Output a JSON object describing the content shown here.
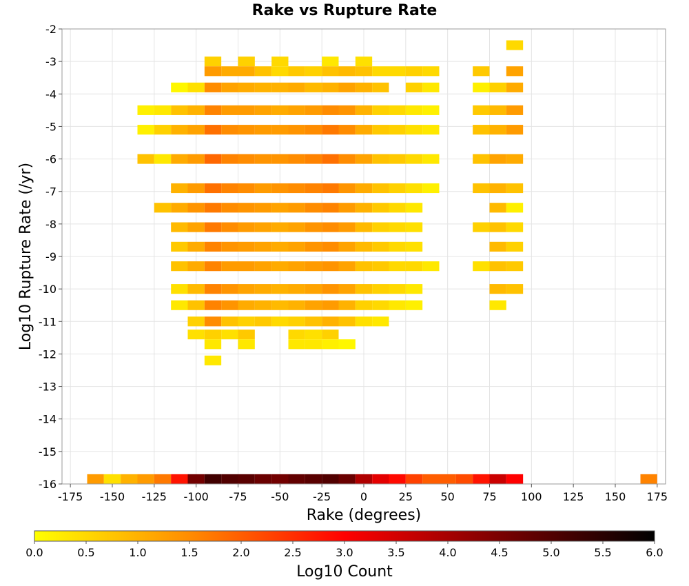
{
  "chart_data": {
    "type": "heatmap",
    "title": "Rake vs Rupture Rate",
    "xlabel": "Rake (degrees)",
    "ylabel": "Log10 Rupture Rate (/yr)",
    "colorbar_label": "Log10 Count",
    "xlim": [
      -180,
      180
    ],
    "ylim": [
      -16,
      -2
    ],
    "x_ticks": [
      "-175",
      "-150",
      "-125",
      "-100",
      "-75",
      "-50",
      "-25",
      "0",
      "25",
      "50",
      "75",
      "100",
      "125",
      "150",
      "175"
    ],
    "y_ticks": [
      "-2",
      "-3",
      "-4",
      "-5",
      "-6",
      "-7",
      "-8",
      "-9",
      "-10",
      "-11",
      "-12",
      "-13",
      "-14",
      "-15",
      "-16"
    ],
    "colorbar_ticks": [
      "0.0",
      "0.5",
      "1.0",
      "1.5",
      "2.0",
      "2.5",
      "3.0",
      "3.5",
      "4.0",
      "4.5",
      "5.0",
      "5.5",
      "6.0"
    ],
    "z_range": [
      0,
      6
    ],
    "colormap": [
      "#ffff00",
      "#ff8c00",
      "#ff0000",
      "#7a0000",
      "#000000"
    ],
    "grid": true,
    "bin_width": 10,
    "bin_height": 0.3,
    "cells": [
      [
        "-160",
        -16,
        1.3
      ],
      [
        "-150",
        -16,
        0.4
      ],
      [
        "-140",
        -16,
        1.0
      ],
      [
        "-130",
        -16,
        1.3
      ],
      [
        "-120",
        -16,
        1.7
      ],
      [
        "-110",
        -16,
        2.8
      ],
      [
        "-100",
        -16,
        4.6
      ],
      [
        "-90",
        -16,
        5.2
      ],
      [
        "-80",
        -16,
        5.0
      ],
      [
        "-70",
        -16,
        4.9
      ],
      [
        "-60",
        -16,
        4.7
      ],
      [
        "-50",
        -16,
        4.6
      ],
      [
        "-40",
        -16,
        4.8
      ],
      [
        "-30",
        -16,
        4.9
      ],
      [
        "-20",
        -16,
        5.0
      ],
      [
        "-10",
        -16,
        4.7
      ],
      [
        "0",
        -16,
        3.9
      ],
      [
        "10",
        -16,
        3.3
      ],
      [
        "20",
        -16,
        2.9
      ],
      [
        "30",
        -16,
        2.3
      ],
      [
        "40",
        -16,
        2.0
      ],
      [
        "50",
        -16,
        2.0
      ],
      [
        "60",
        -16,
        2.2
      ],
      [
        "70",
        -16,
        2.8
      ],
      [
        "80",
        -16,
        3.6
      ],
      [
        "90",
        -16,
        3.0
      ],
      [
        "170",
        -16,
        1.6
      ],
      [
        "-90",
        -3,
        0.6
      ],
      [
        "-70",
        -3,
        0.6
      ],
      [
        "-50",
        -3,
        0.5
      ],
      [
        "-20",
        -3,
        0.3
      ],
      [
        "0",
        -3,
        0.4
      ],
      [
        "90",
        -2.5,
        0.5
      ],
      [
        "-90",
        -3.3,
        1.3
      ],
      [
        "-80",
        -3.3,
        1.1
      ],
      [
        "-70",
        -3.3,
        1.1
      ],
      [
        "-60",
        -3.3,
        0.8
      ],
      [
        "-50",
        -3.3,
        0.5
      ],
      [
        "-40",
        -3.3,
        0.7
      ],
      [
        "-30",
        -3.3,
        0.6
      ],
      [
        "-20",
        -3.3,
        0.8
      ],
      [
        "-10",
        -3.3,
        0.9
      ],
      [
        "0",
        -3.3,
        0.8
      ],
      [
        "10",
        -3.3,
        0.5
      ],
      [
        "20",
        -3.3,
        0.5
      ],
      [
        "30",
        -3.3,
        0.6
      ],
      [
        "40",
        -3.3,
        0.5
      ],
      [
        "70",
        -3.3,
        0.7
      ],
      [
        "90",
        -3.3,
        1.2
      ],
      [
        "-110",
        -3.8,
        0.1
      ],
      [
        "-100",
        -3.8,
        0.4
      ],
      [
        "-90",
        -3.8,
        1.5
      ],
      [
        "-80",
        -3.8,
        1.2
      ],
      [
        "-70",
        -3.8,
        1.1
      ],
      [
        "-60",
        -3.8,
        1.0
      ],
      [
        "-50",
        -3.8,
        1.0
      ],
      [
        "-40",
        -3.8,
        1.1
      ],
      [
        "-30",
        -3.8,
        0.9
      ],
      [
        "-20",
        -3.8,
        1.0
      ],
      [
        "-10",
        -3.8,
        1.2
      ],
      [
        "0",
        -3.8,
        1.0
      ],
      [
        "10",
        -3.8,
        0.8
      ],
      [
        "30",
        -3.8,
        0.6
      ],
      [
        "40",
        -3.8,
        0.3
      ],
      [
        "70",
        -3.8,
        0.2
      ],
      [
        "80",
        -3.8,
        0.6
      ],
      [
        "90",
        -3.8,
        1.1
      ],
      [
        "-130",
        -4.5,
        0.2
      ],
      [
        "-120",
        -4.5,
        0.3
      ],
      [
        "-110",
        -4.5,
        0.8
      ],
      [
        "-100",
        -4.5,
        1.0
      ],
      [
        "-90",
        -4.5,
        1.6
      ],
      [
        "-80",
        -4.5,
        1.3
      ],
      [
        "-70",
        -4.5,
        1.3
      ],
      [
        "-60",
        -4.5,
        1.2
      ],
      [
        "-50",
        -4.5,
        1.1
      ],
      [
        "-40",
        -4.5,
        1.2
      ],
      [
        "-30",
        -4.5,
        1.3
      ],
      [
        "-20",
        -4.5,
        1.5
      ],
      [
        "-10",
        -4.5,
        1.4
      ],
      [
        "0",
        -4.5,
        1.0
      ],
      [
        "10",
        -4.5,
        0.6
      ],
      [
        "20",
        -4.5,
        0.5
      ],
      [
        "30",
        -4.5,
        0.3
      ],
      [
        "40",
        -4.5,
        0.2
      ],
      [
        "70",
        -4.5,
        0.7
      ],
      [
        "80",
        -4.5,
        0.9
      ],
      [
        "90",
        -4.5,
        1.3
      ],
      [
        "-130",
        -5.1,
        0.2
      ],
      [
        "-120",
        -5.1,
        0.6
      ],
      [
        "-110",
        -5.1,
        1.0
      ],
      [
        "-100",
        -5.1,
        1.2
      ],
      [
        "-90",
        -5.1,
        1.8
      ],
      [
        "-80",
        -5.1,
        1.5
      ],
      [
        "-70",
        -5.1,
        1.4
      ],
      [
        "-60",
        -5.1,
        1.3
      ],
      [
        "-50",
        -5.1,
        1.3
      ],
      [
        "-40",
        -5.1,
        1.4
      ],
      [
        "-30",
        -5.1,
        1.5
      ],
      [
        "-20",
        -5.1,
        1.7
      ],
      [
        "-10",
        -5.1,
        1.5
      ],
      [
        "0",
        -5.1,
        1.1
      ],
      [
        "10",
        -5.1,
        0.7
      ],
      [
        "20",
        -5.1,
        0.6
      ],
      [
        "30",
        -5.1,
        0.4
      ],
      [
        "40",
        -5.1,
        0.3
      ],
      [
        "70",
        -5.1,
        0.8
      ],
      [
        "80",
        -5.1,
        1.0
      ],
      [
        "90",
        -5.1,
        1.3
      ],
      [
        "-130",
        -6,
        0.8
      ],
      [
        "-120",
        -6,
        0.3
      ],
      [
        "-110",
        -6,
        1.1
      ],
      [
        "-100",
        -6,
        1.3
      ],
      [
        "-90",
        -6,
        1.9
      ],
      [
        "-80",
        -6,
        1.6
      ],
      [
        "-70",
        -6,
        1.5
      ],
      [
        "-60",
        -6,
        1.4
      ],
      [
        "-50",
        -6,
        1.4
      ],
      [
        "-40",
        -6,
        1.5
      ],
      [
        "-30",
        -6,
        1.6
      ],
      [
        "-20",
        -6,
        1.8
      ],
      [
        "-10",
        -6,
        1.5
      ],
      [
        "0",
        -6,
        1.2
      ],
      [
        "10",
        -6,
        0.8
      ],
      [
        "20",
        -6,
        0.7
      ],
      [
        "30",
        -6,
        0.5
      ],
      [
        "40",
        -6,
        0.3
      ],
      [
        "70",
        -6,
        0.8
      ],
      [
        "80",
        -6,
        1.2
      ],
      [
        "90",
        -6,
        1.1
      ],
      [
        "-110",
        -6.9,
        1.0
      ],
      [
        "-100",
        -6.9,
        1.3
      ],
      [
        "-90",
        -6.9,
        1.8
      ],
      [
        "-80",
        -6.9,
        1.6
      ],
      [
        "-70",
        -6.9,
        1.5
      ],
      [
        "-60",
        -6.9,
        1.3
      ],
      [
        "-50",
        -6.9,
        1.4
      ],
      [
        "-40",
        -6.9,
        1.5
      ],
      [
        "-30",
        -6.9,
        1.6
      ],
      [
        "-20",
        -6.9,
        1.7
      ],
      [
        "-10",
        -6.9,
        1.4
      ],
      [
        "0",
        -6.9,
        1.1
      ],
      [
        "10",
        -6.9,
        0.8
      ],
      [
        "20",
        -6.9,
        0.6
      ],
      [
        "30",
        -6.9,
        0.4
      ],
      [
        "40",
        -6.9,
        0.2
      ],
      [
        "70",
        -6.9,
        0.8
      ],
      [
        "80",
        -6.9,
        1.0
      ],
      [
        "90",
        -6.9,
        0.8
      ],
      [
        "-120",
        -7.5,
        0.8
      ],
      [
        "-110",
        -7.5,
        1.1
      ],
      [
        "-100",
        -7.5,
        1.4
      ],
      [
        "-90",
        -7.5,
        1.7
      ],
      [
        "-80",
        -7.5,
        1.5
      ],
      [
        "-70",
        -7.5,
        1.4
      ],
      [
        "-60",
        -7.5,
        1.3
      ],
      [
        "-50",
        -7.5,
        1.2
      ],
      [
        "-40",
        -7.5,
        1.3
      ],
      [
        "-30",
        -7.5,
        1.5
      ],
      [
        "-20",
        -7.5,
        1.6
      ],
      [
        "-10",
        -7.5,
        1.3
      ],
      [
        "0",
        -7.5,
        1.0
      ],
      [
        "10",
        -7.5,
        0.7
      ],
      [
        "20",
        -7.5,
        0.5
      ],
      [
        "30",
        -7.5,
        0.3
      ],
      [
        "80",
        -7.5,
        0.9
      ],
      [
        "90",
        -7.5,
        0.2
      ],
      [
        "-110",
        -8.1,
        0.9
      ],
      [
        "-100",
        -8.1,
        1.2
      ],
      [
        "-90",
        -8.1,
        1.7
      ],
      [
        "-80",
        -8.1,
        1.5
      ],
      [
        "-70",
        -8.1,
        1.3
      ],
      [
        "-60",
        -8.1,
        1.2
      ],
      [
        "-50",
        -8.1,
        1.1
      ],
      [
        "-40",
        -8.1,
        1.2
      ],
      [
        "-30",
        -8.1,
        1.4
      ],
      [
        "-20",
        -8.1,
        1.5
      ],
      [
        "-10",
        -8.1,
        1.3
      ],
      [
        "0",
        -8.1,
        0.9
      ],
      [
        "10",
        -8.1,
        0.6
      ],
      [
        "20",
        -8.1,
        0.5
      ],
      [
        "30",
        -8.1,
        0.4
      ],
      [
        "70",
        -8.1,
        0.6
      ],
      [
        "80",
        -8.1,
        0.8
      ],
      [
        "90",
        -8.1,
        0.5
      ],
      [
        "-110",
        -8.7,
        0.7
      ],
      [
        "-100",
        -8.7,
        1.1
      ],
      [
        "-90",
        -8.7,
        1.6
      ],
      [
        "-80",
        -8.7,
        1.4
      ],
      [
        "-70",
        -8.7,
        1.3
      ],
      [
        "-60",
        -8.7,
        1.2
      ],
      [
        "-50",
        -8.7,
        1.1
      ],
      [
        "-40",
        -8.7,
        1.2
      ],
      [
        "-30",
        -8.7,
        1.4
      ],
      [
        "-20",
        -8.7,
        1.5
      ],
      [
        "-10",
        -8.7,
        1.2
      ],
      [
        "0",
        -8.7,
        0.9
      ],
      [
        "10",
        -8.7,
        0.7
      ],
      [
        "20",
        -8.7,
        0.5
      ],
      [
        "30",
        -8.7,
        0.4
      ],
      [
        "80",
        -8.7,
        0.9
      ],
      [
        "90",
        -8.7,
        0.6
      ],
      [
        "-110",
        -9.3,
        0.8
      ],
      [
        "-100",
        -9.3,
        1.1
      ],
      [
        "-90",
        -9.3,
        1.6
      ],
      [
        "-80",
        -9.3,
        1.3
      ],
      [
        "-70",
        -9.3,
        1.3
      ],
      [
        "-60",
        -9.3,
        1.2
      ],
      [
        "-50",
        -9.3,
        1.1
      ],
      [
        "-40",
        -9.3,
        1.2
      ],
      [
        "-30",
        -9.3,
        1.3
      ],
      [
        "-20",
        -9.3,
        1.4
      ],
      [
        "-10",
        -9.3,
        1.2
      ],
      [
        "0",
        -9.3,
        0.8
      ],
      [
        "10",
        -9.3,
        0.7
      ],
      [
        "20",
        -9.3,
        0.5
      ],
      [
        "30",
        -9.3,
        0.5
      ],
      [
        "40",
        -9.3,
        0.3
      ],
      [
        "70",
        -9.3,
        0.4
      ],
      [
        "80",
        -9.3,
        0.8
      ],
      [
        "90",
        -9.3,
        0.7
      ],
      [
        "-110",
        -10,
        0.4
      ],
      [
        "-100",
        -10,
        0.9
      ],
      [
        "-90",
        -10,
        1.6
      ],
      [
        "-80",
        -10,
        1.4
      ],
      [
        "-70",
        -10,
        1.2
      ],
      [
        "-60",
        -10,
        1.1
      ],
      [
        "-50",
        -10,
        1.0
      ],
      [
        "-40",
        -10,
        1.1
      ],
      [
        "-30",
        -10,
        1.2
      ],
      [
        "-20",
        -10,
        1.4
      ],
      [
        "-10",
        -10,
        1.2
      ],
      [
        "0",
        -10,
        0.8
      ],
      [
        "10",
        -10,
        0.6
      ],
      [
        "20",
        -10,
        0.5
      ],
      [
        "30",
        -10,
        0.3
      ],
      [
        "80",
        -10,
        0.9
      ],
      [
        "90",
        -10,
        0.8
      ],
      [
        "-110",
        -10.5,
        0.3
      ],
      [
        "-100",
        -10.5,
        0.8
      ],
      [
        "-90",
        -10.5,
        1.6
      ],
      [
        "-80",
        -10.5,
        1.4
      ],
      [
        "-70",
        -10.5,
        1.1
      ],
      [
        "-60",
        -10.5,
        1.0
      ],
      [
        "-50",
        -10.5,
        0.9
      ],
      [
        "-40",
        -10.5,
        1.0
      ],
      [
        "-30",
        -10.5,
        1.2
      ],
      [
        "-20",
        -10.5,
        1.3
      ],
      [
        "-10",
        -10.5,
        1.0
      ],
      [
        "0",
        -10.5,
        0.6
      ],
      [
        "10",
        -10.5,
        0.5
      ],
      [
        "20",
        -10.5,
        0.3
      ],
      [
        "30",
        -10.5,
        0.2
      ],
      [
        "80",
        -10.5,
        0.3
      ],
      [
        "-100",
        -11,
        0.6
      ],
      [
        "-90",
        -11,
        1.5
      ],
      [
        "-80",
        -11,
        0.8
      ],
      [
        "-70",
        -11,
        0.6
      ],
      [
        "-60",
        -11,
        0.7
      ],
      [
        "-50",
        -11,
        0.5
      ],
      [
        "-40",
        -11,
        0.6
      ],
      [
        "-30",
        -11,
        0.8
      ],
      [
        "-20",
        -11,
        1.0
      ],
      [
        "-10",
        -11,
        0.8
      ],
      [
        "0",
        -11,
        0.4
      ],
      [
        "10",
        -11,
        0.3
      ],
      [
        "-100",
        -11.4,
        0.4
      ],
      [
        "-90",
        -11.4,
        0.6
      ],
      [
        "-80",
        -11.4,
        0.4
      ],
      [
        "-70",
        -11.4,
        0.7
      ],
      [
        "-40",
        -11.4,
        0.5
      ],
      [
        "-30",
        -11.4,
        0.4
      ],
      [
        "-20",
        -11.4,
        0.6
      ],
      [
        "-90",
        -11.7,
        0.3
      ],
      [
        "-70",
        -11.7,
        0.3
      ],
      [
        "-40",
        -11.7,
        0.3
      ],
      [
        "-30",
        -11.7,
        0.3
      ],
      [
        "-20",
        -11.7,
        0.2
      ],
      [
        "-10",
        -11.7,
        0.1
      ],
      [
        "-90",
        -12.2,
        0.3
      ]
    ]
  }
}
